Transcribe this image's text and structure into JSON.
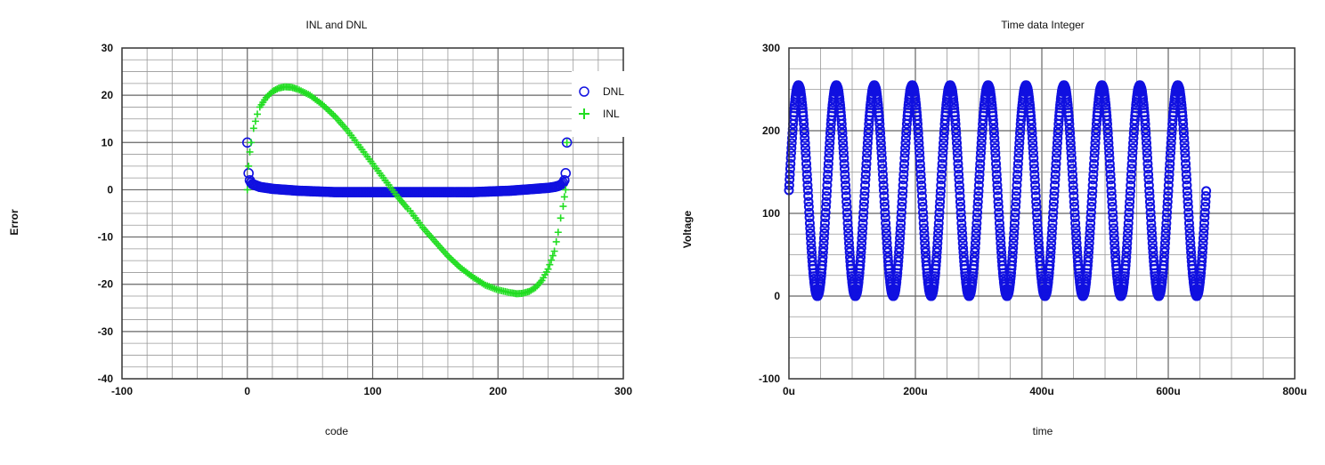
{
  "chart_data": [
    {
      "type": "scatter",
      "title": "INL and DNL",
      "xlabel": "code",
      "ylabel": "Error",
      "xlim": [
        -100,
        300
      ],
      "ylim": [
        -40,
        30
      ],
      "xticks": [
        -100,
        0,
        100,
        200,
        300
      ],
      "xtick_labels": [
        "-100",
        "0",
        "100",
        "200",
        "300"
      ],
      "yticks": [
        -40,
        -30,
        -20,
        -10,
        0,
        10,
        20,
        30
      ],
      "ytick_labels": [
        "-40",
        "-30",
        "-20",
        "-10",
        "0",
        "10",
        "20",
        "30"
      ],
      "grid": true,
      "legend": "top-right",
      "series": [
        {
          "name": "DNL",
          "marker": "circle",
          "color": "#1010e0",
          "x": [
            0,
            1,
            2,
            3,
            4,
            6,
            8,
            10,
            15,
            20,
            30,
            40,
            50,
            60,
            70,
            80,
            90,
            100,
            110,
            120,
            130,
            140,
            150,
            160,
            170,
            180,
            190,
            200,
            210,
            220,
            230,
            240,
            245,
            248,
            250,
            252,
            253,
            254,
            255
          ],
          "y": [
            10,
            3.5,
            2,
            1.5,
            1.2,
            1,
            0.8,
            0.6,
            0.4,
            0.2,
            0,
            -0.2,
            -0.3,
            -0.4,
            -0.5,
            -0.5,
            -0.5,
            -0.5,
            -0.5,
            -0.5,
            -0.5,
            -0.5,
            -0.5,
            -0.5,
            -0.5,
            -0.5,
            -0.4,
            -0.3,
            -0.2,
            0,
            0.2,
            0.4,
            0.6,
            0.8,
            1,
            1.5,
            2,
            3.5,
            10
          ]
        },
        {
          "name": "INL",
          "marker": "plus",
          "color": "#22dd22",
          "x": [
            0,
            1,
            2,
            3,
            5,
            8,
            10,
            15,
            20,
            25,
            30,
            35,
            40,
            50,
            60,
            70,
            80,
            90,
            100,
            110,
            120,
            128,
            130,
            140,
            150,
            160,
            170,
            180,
            190,
            200,
            210,
            215,
            220,
            225,
            230,
            235,
            240,
            245,
            248,
            250,
            252,
            253,
            254,
            255
          ],
          "y": [
            0,
            5,
            8,
            10,
            13,
            16,
            17.5,
            19.5,
            20.8,
            21.5,
            21.8,
            21.7,
            21.3,
            20,
            18,
            15.5,
            12.5,
            9,
            5.5,
            2,
            -1.5,
            -4,
            -4.5,
            -8,
            -11,
            -14,
            -16.5,
            -18.5,
            -20.2,
            -21.2,
            -21.8,
            -22,
            -21.9,
            -21.5,
            -20.7,
            -19.2,
            -16.8,
            -13,
            -9,
            -6,
            -3.5,
            -1.5,
            0,
            10
          ]
        }
      ]
    },
    {
      "type": "scatter",
      "title": "Time data Integer",
      "xlabel": "time",
      "ylabel": "Voltage",
      "xlim": [
        0,
        800
      ],
      "x_unit": "u",
      "ylim": [
        -100,
        300
      ],
      "xticks": [
        0,
        200,
        400,
        600,
        800
      ],
      "xtick_labels": [
        "0u",
        "200u",
        "400u",
        "600u",
        "800u"
      ],
      "yticks": [
        -100,
        0,
        100,
        200,
        300
      ],
      "ytick_labels": [
        "-100",
        "0",
        "100",
        "200",
        "300"
      ],
      "grid": true,
      "series": [
        {
          "marker": "circle",
          "color": "#1010e0",
          "waveform": "sine",
          "x_start": 0,
          "x_end": 660,
          "period": 60,
          "offset": 127.5,
          "amplitude": 127.5,
          "min": 0,
          "max": 255
        }
      ]
    }
  ]
}
